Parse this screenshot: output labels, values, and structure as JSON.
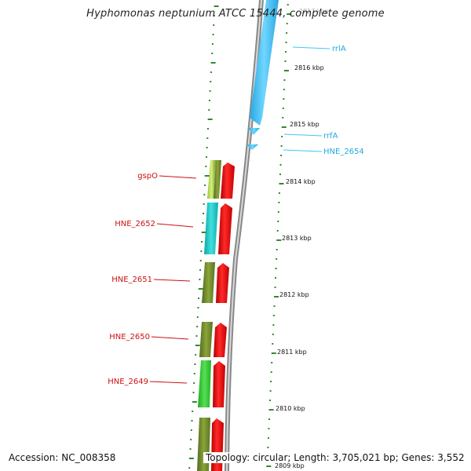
{
  "header": {
    "title": "Hyphomonas neptunium ATCC 15444, complete genome"
  },
  "footer": {
    "accession": "Accession: NC_008358",
    "summary": "Topology: circular; Length: 3,705,021 bp; Genes: 3,552"
  },
  "ruler": {
    "unit": "kbp",
    "labels": [
      {
        "text": "2817 kbp",
        "value": 2817
      },
      {
        "text": "2816 kbp",
        "value": 2816
      },
      {
        "text": "2815 kbp",
        "value": 2815
      },
      {
        "text": "2814 kbp",
        "value": 2814
      },
      {
        "text": "2813 kbp",
        "value": 2813
      },
      {
        "text": "2812 kbp",
        "value": 2812
      },
      {
        "text": "2811 kbp",
        "value": 2811
      },
      {
        "text": "2810 kbp",
        "value": 2810
      },
      {
        "text": "2809 kbp",
        "value": 2809
      }
    ]
  },
  "features": {
    "forward": [
      {
        "label": "rrlA",
        "color": "#3fc7f4"
      },
      {
        "label": "rrfA",
        "color": "#3fc7f4"
      },
      {
        "label": "HNE_2654",
        "color": "#3fc7f4"
      }
    ],
    "reverse": [
      {
        "label": "gspO",
        "color": "#cc1111"
      },
      {
        "label": "HNE_2652",
        "color": "#cc1111"
      },
      {
        "label": "HNE_2651",
        "color": "#cc1111"
      },
      {
        "label": "HNE_2650",
        "color": "#cc1111"
      },
      {
        "label": "HNE_2649",
        "color": "#cc1111"
      }
    ]
  },
  "colors": {
    "backbone": "#8c8c8c",
    "tick": "#2e8b2e",
    "cds": "#ee1111",
    "rna": "#3fc7f4",
    "cog_olive": "#6e8b2a",
    "cog_teal": "#20c8c8",
    "cog_green": "#33cc33",
    "cog_lime": "#a4cc33"
  }
}
